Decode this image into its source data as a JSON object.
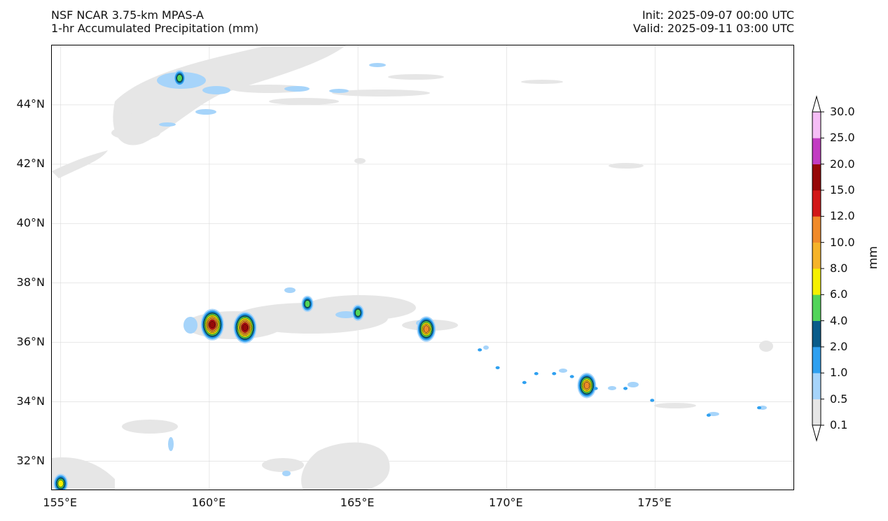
{
  "header": {
    "title_line1": "NSF NCAR 3.75-km MPAS-A",
    "title_line2": "1-hr Accumulated Precipitation (mm)",
    "init": "Init: 2025-09-07 00:00 UTC",
    "valid": "Valid: 2025-09-11 03:00 UTC"
  },
  "axes": {
    "lon_ticks": [
      "155°E",
      "160°E",
      "165°E",
      "170°E",
      "175°E"
    ],
    "lat_ticks": [
      "44°N",
      "42°N",
      "40°N",
      "38°N",
      "36°N",
      "34°N",
      "32°N"
    ],
    "lon_values": [
      155,
      160,
      165,
      170,
      175
    ],
    "lat_values": [
      44,
      42,
      40,
      38,
      36,
      34,
      32
    ],
    "lon_range": [
      154.7,
      179.7
    ],
    "lat_range": [
      31.0,
      46.0
    ]
  },
  "colorbar": {
    "unit": "mm",
    "levels": [
      "0.1",
      "0.5",
      "1.0",
      "2.0",
      "4.0",
      "6.0",
      "8.0",
      "10.0",
      "12.0",
      "15.0",
      "20.0",
      "25.0",
      "30.0"
    ],
    "colors": [
      "#e6e6e6",
      "#a6d4fa",
      "#2fa0f0",
      "#0a5c8a",
      "#52d45a",
      "#f5f000",
      "#f5b32a",
      "#f08a2a",
      "#d21818",
      "#960808",
      "#c23cc2",
      "#f5bdf5"
    ],
    "extend_min_color": "#ffffff",
    "extend_max_color": "#ffffff"
  },
  "precip_features": [
    {
      "name": "north-cluster",
      "lon": 159.0,
      "lat": 44.9,
      "level": 4
    },
    {
      "name": "cell-160E",
      "lon": 160.1,
      "lat": 36.6,
      "level": 9
    },
    {
      "name": "cell-161E",
      "lon": 161.2,
      "lat": 36.5,
      "level": 9
    },
    {
      "name": "cell-163E",
      "lon": 163.3,
      "lat": 37.3,
      "level": 4
    },
    {
      "name": "cell-165E",
      "lon": 165.0,
      "lat": 37.0,
      "level": 4
    },
    {
      "name": "cell-167E",
      "lon": 167.3,
      "lat": 36.45,
      "level": 7
    },
    {
      "name": "cell-172E",
      "lon": 172.7,
      "lat": 34.55,
      "level": 7
    },
    {
      "name": "cell-155E",
      "lon": 155.0,
      "lat": 31.25,
      "level": 5
    }
  ]
}
